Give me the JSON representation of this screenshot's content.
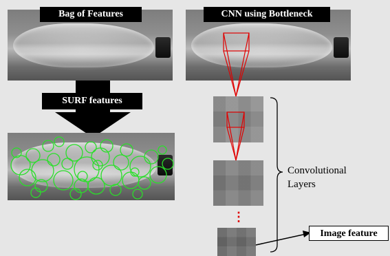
{
  "left_panel": {
    "title": "Bag of Features",
    "step_label": "SURF features"
  },
  "right_panel": {
    "title": "CNN using Bottleneck",
    "brace_label_line1": "Convolutional",
    "brace_label_line2": "Layers",
    "ellipsis": "⋮",
    "output_label": "Image feature"
  },
  "colors": {
    "surf_circles": "#2adf2a",
    "receptive_field": "#e00000",
    "label_bg": "#000000",
    "background": "#e6e6e6"
  }
}
